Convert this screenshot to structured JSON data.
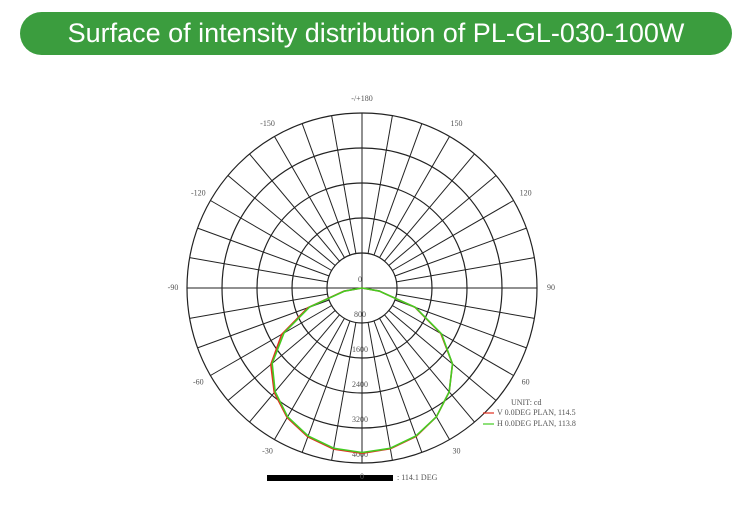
{
  "header": {
    "title": "Surface of intensity distribution of PL-GL-030-100W"
  },
  "chart_data": {
    "type": "polar",
    "theta": [
      -90,
      -80,
      -70,
      -60,
      -50,
      -40,
      -30,
      -20,
      -10,
      0,
      10,
      20,
      30,
      40,
      50,
      60,
      70,
      80,
      90
    ],
    "series": [
      {
        "name": "V 0.0DEG PLAN, 114.5",
        "color": "#e03020",
        "values": [
          0,
          420,
          1320,
          2120,
          2720,
          3120,
          3420,
          3620,
          3740,
          3780,
          3730,
          3610,
          3400,
          3100,
          2700,
          2080,
          1290,
          400,
          0
        ]
      },
      {
        "name": "H 0.0DEG PLAN, 113.8",
        "color": "#44cc22",
        "values": [
          0,
          400,
          1280,
          2060,
          2680,
          3090,
          3400,
          3600,
          3720,
          3760,
          3720,
          3600,
          3400,
          3100,
          2700,
          2100,
          1300,
          400,
          0
        ]
      }
    ],
    "rlim": [
      0,
      4000
    ],
    "rticks": [
      0,
      800,
      1600,
      2400,
      3200,
      4000
    ],
    "angle_ticks": [
      {
        "value": 180,
        "label": "-/+180"
      },
      -150,
      150,
      -120,
      120,
      -90,
      90,
      -60,
      60,
      -30,
      30,
      0
    ],
    "unit_label": "UNIT: cd",
    "footer_label": ": 114.1 DEG",
    "grid": true
  }
}
